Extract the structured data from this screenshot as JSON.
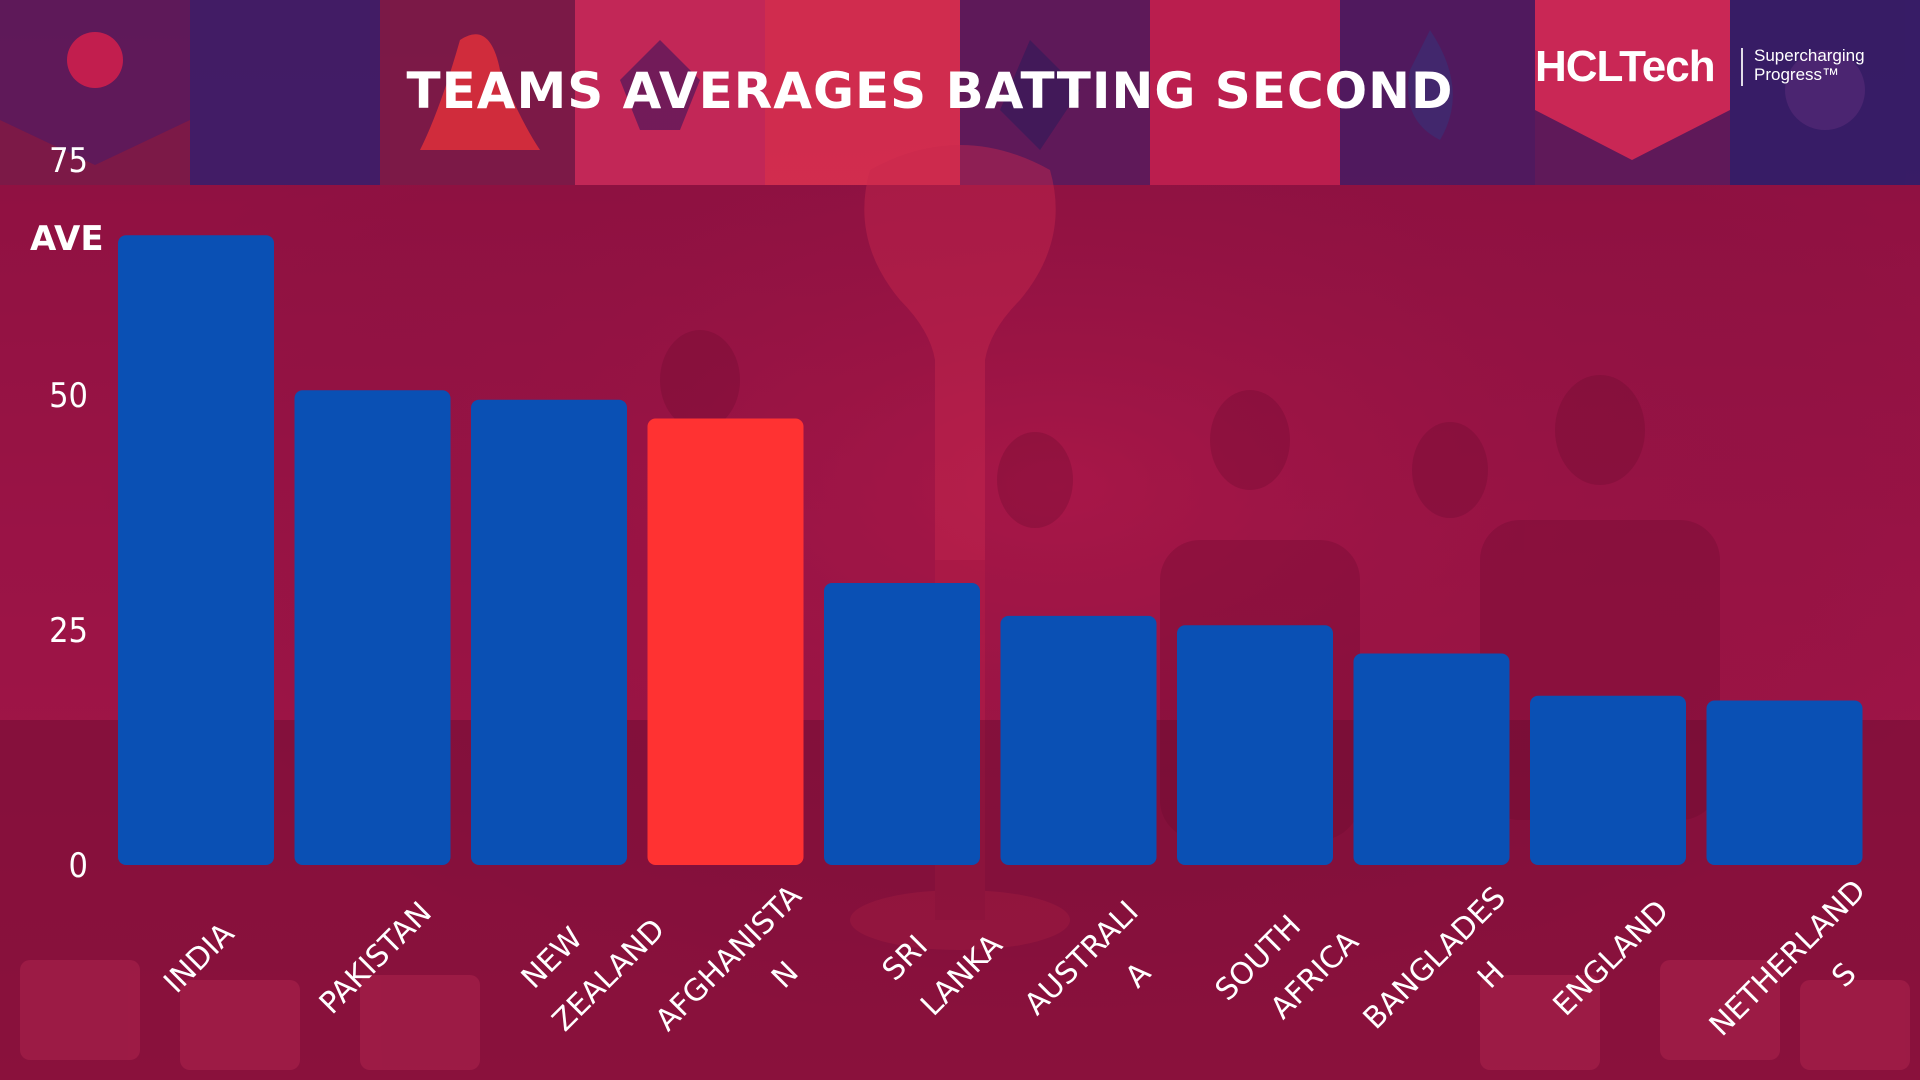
{
  "logo": {
    "brand": "HCLTech",
    "tagline_line1": "Supercharging",
    "tagline_line2": "Progress™"
  },
  "colors": {
    "bar_default": "#0a50b4",
    "bar_highlight": "#ff3232",
    "background_top": "#7a1035",
    "background_main": "#a8144a"
  },
  "chart_data": {
    "type": "bar",
    "title": "TEAMS AVERAGES BATTING SECOND",
    "ylabel": "AVE",
    "xlabel": "",
    "ylim": [
      0,
      75
    ],
    "yticks": [
      0,
      25,
      50,
      75
    ],
    "grid": false,
    "categories": [
      [
        "INDIA"
      ],
      [
        "PAKISTAN"
      ],
      [
        "NEW",
        "ZEALAND"
      ],
      [
        "AFGHANISTA",
        "N"
      ],
      [
        "SRI",
        "LANKA"
      ],
      [
        "AUSTRALI",
        "A"
      ],
      [
        "SOUTH",
        "AFRICA"
      ],
      [
        "BANGLADES",
        "H"
      ],
      [
        "ENGLAND"
      ],
      [
        "NETHERLAND",
        "S"
      ]
    ],
    "values": [
      67,
      50.5,
      49.5,
      47.5,
      30,
      26.5,
      25.5,
      22.5,
      18,
      17.5
    ],
    "highlight": "AFGHANISTAN"
  }
}
